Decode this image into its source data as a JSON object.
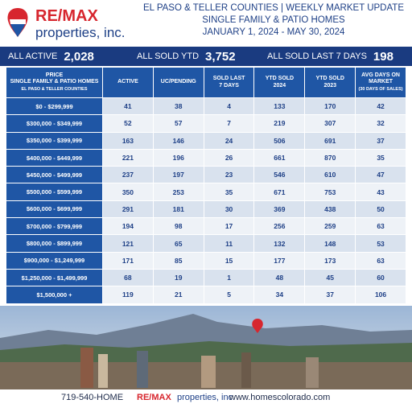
{
  "header": {
    "logo": {
      "brand": "RE/MAX",
      "sub": "properties, inc."
    },
    "lines": [
      "EL PASO & TELLER COUNTIES | WEEKLY MARKET UPDATE",
      "SINGLE FAMILY & PATIO HOMES",
      "JANUARY 1, 2024 - MAY 30, 2024"
    ]
  },
  "stats": [
    {
      "label": "ALL ACTIVE",
      "value": "2,028"
    },
    {
      "label": "ALL SOLD YTD",
      "value": "3,752"
    },
    {
      "label": "ALL SOLD LAST 7 DAYS",
      "value": "198"
    }
  ],
  "table": {
    "columns": [
      [
        "PRICE",
        "SINGLE FAMILY & PATIO HOMES",
        "EL PASO & TELLER COUNTIES"
      ],
      [
        "ACTIVE"
      ],
      [
        "UC/PENDING"
      ],
      [
        "SOLD LAST",
        "7 DAYS"
      ],
      [
        "YTD SOLD",
        "2024"
      ],
      [
        "YTD SOLD",
        "2023"
      ],
      [
        "AVG DAYS ON",
        "MARKET",
        "(30 DAYS OF SALES)"
      ]
    ],
    "rows": [
      [
        "$0 - $299,999",
        41,
        38,
        4,
        133,
        170,
        42
      ],
      [
        "$300,000 - $349,999",
        52,
        57,
        7,
        219,
        307,
        32
      ],
      [
        "$350,000 - $399,999",
        163,
        146,
        24,
        506,
        691,
        37
      ],
      [
        "$400,000 - $449,999",
        221,
        196,
        26,
        661,
        870,
        35
      ],
      [
        "$450,000 - $499,999",
        237,
        197,
        23,
        546,
        610,
        47
      ],
      [
        "$500,000 - $599,999",
        350,
        253,
        35,
        671,
        753,
        43
      ],
      [
        "$600,000 - $699,999",
        291,
        181,
        30,
        369,
        438,
        50
      ],
      [
        "$700,000 - $799,999",
        194,
        98,
        17,
        256,
        259,
        63
      ],
      [
        "$800,000 - $899,999",
        121,
        65,
        11,
        132,
        148,
        53
      ],
      [
        "$900,000 - $1,249,999",
        171,
        85,
        15,
        177,
        173,
        63
      ],
      [
        "$1,250,000 - $1,499,999",
        68,
        19,
        1,
        48,
        45,
        60
      ],
      [
        "$1,500,000 +",
        119,
        21,
        5,
        34,
        37,
        106
      ]
    ]
  },
  "footer": {
    "phone": "719-540-HOME",
    "logo": {
      "brand": "RE/MAX",
      "sub": "properties, inc."
    },
    "website": "www.homescolorado.com"
  }
}
